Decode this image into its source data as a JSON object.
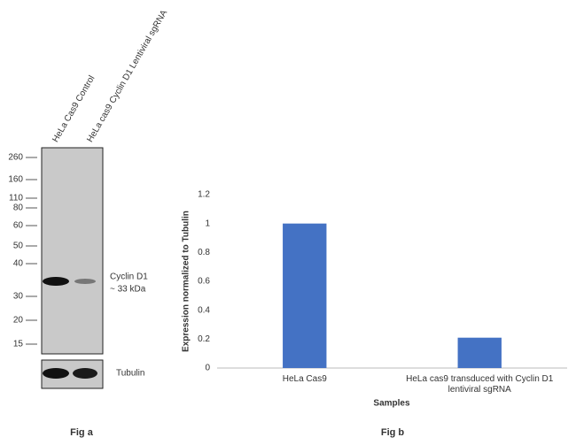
{
  "western_blot": {
    "lanes": [
      "HeLa Cas9 Control",
      "HeLa cas9 Cyclin D1 Lentiviral sgRNA"
    ],
    "markers": [
      260,
      160,
      110,
      80,
      60,
      50,
      40,
      30,
      20,
      15
    ],
    "band_label": "Cyclin D1",
    "band_size": "~ 33 kDa",
    "loading_control": "Tubulin",
    "caption": "Fig a"
  },
  "chart_data": {
    "type": "bar",
    "caption": "Fig b",
    "categories": [
      "HeLa Cas9",
      "HeLa cas9 transduced with Cyclin D1 lentiviral sgRNA"
    ],
    "values": [
      1,
      0.21
    ],
    "color": "#4472c4",
    "ylim": [
      0,
      1.2
    ],
    "yticks": [
      0,
      0.2,
      0.4,
      0.6,
      0.8,
      1,
      1.2
    ],
    "grid": false,
    "y_label": "Expression  normalized to Tubulin",
    "x_label": "Samples"
  }
}
